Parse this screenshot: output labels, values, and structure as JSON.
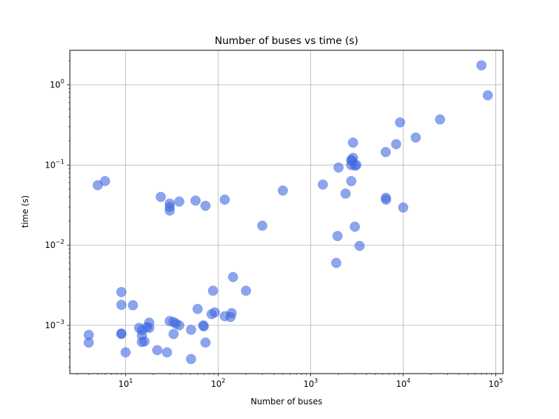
{
  "chart_data": {
    "type": "scatter",
    "title": "Number of buses vs time (s)",
    "xlabel": "Number of buses",
    "ylabel": "time (s)",
    "xscale": "log",
    "yscale": "log",
    "xlim": [
      2.5,
      120000
    ],
    "ylim": [
      0.00025,
      2.7
    ],
    "grid": true,
    "x_ticks": [
      {
        "value": 10,
        "base": "10",
        "exp": "1"
      },
      {
        "value": 100,
        "base": "10",
        "exp": "2"
      },
      {
        "value": 1000,
        "base": "10",
        "exp": "3"
      },
      {
        "value": 10000,
        "base": "10",
        "exp": "4"
      },
      {
        "value": 100000,
        "base": "10",
        "exp": "5"
      }
    ],
    "y_ticks": [
      {
        "value": 0.001,
        "base": "10",
        "exp": "−3"
      },
      {
        "value": 0.01,
        "base": "10",
        "exp": "−2"
      },
      {
        "value": 0.1,
        "base": "10",
        "exp": "−1"
      },
      {
        "value": 1,
        "base": "10",
        "exp": "0"
      }
    ],
    "marker_color": "#4169e1",
    "points": [
      {
        "x": 4,
        "y": 0.00076
      },
      {
        "x": 4,
        "y": 0.00061
      },
      {
        "x": 5,
        "y": 0.056
      },
      {
        "x": 6,
        "y": 0.063
      },
      {
        "x": 9,
        "y": 0.0026
      },
      {
        "x": 9,
        "y": 0.0018
      },
      {
        "x": 9,
        "y": 0.00079
      },
      {
        "x": 9,
        "y": 0.00078
      },
      {
        "x": 10,
        "y": 0.00046
      },
      {
        "x": 12,
        "y": 0.00178
      },
      {
        "x": 14,
        "y": 0.00093
      },
      {
        "x": 15,
        "y": 0.00087
      },
      {
        "x": 15,
        "y": 0.00075
      },
      {
        "x": 15,
        "y": 0.00062
      },
      {
        "x": 16,
        "y": 0.00063
      },
      {
        "x": 17,
        "y": 0.00095
      },
      {
        "x": 18,
        "y": 0.00108
      },
      {
        "x": 18,
        "y": 0.00093
      },
      {
        "x": 22,
        "y": 0.00049
      },
      {
        "x": 24,
        "y": 0.04
      },
      {
        "x": 28,
        "y": 0.00046
      },
      {
        "x": 30,
        "y": 0.033
      },
      {
        "x": 30,
        "y": 0.03
      },
      {
        "x": 30,
        "y": 0.027
      },
      {
        "x": 30,
        "y": 0.00113
      },
      {
        "x": 33,
        "y": 0.0011
      },
      {
        "x": 33,
        "y": 0.00078
      },
      {
        "x": 35,
        "y": 0.00105
      },
      {
        "x": 38,
        "y": 0.035
      },
      {
        "x": 38,
        "y": 0.001
      },
      {
        "x": 51,
        "y": 0.00088
      },
      {
        "x": 51,
        "y": 0.00038
      },
      {
        "x": 57,
        "y": 0.036
      },
      {
        "x": 60,
        "y": 0.0016
      },
      {
        "x": 69,
        "y": 0.001
      },
      {
        "x": 70,
        "y": 0.00097
      },
      {
        "x": 73,
        "y": 0.031
      },
      {
        "x": 73,
        "y": 0.00061
      },
      {
        "x": 85,
        "y": 0.00138
      },
      {
        "x": 88,
        "y": 0.0027
      },
      {
        "x": 92,
        "y": 0.00145
      },
      {
        "x": 118,
        "y": 0.037
      },
      {
        "x": 118,
        "y": 0.0013
      },
      {
        "x": 136,
        "y": 0.00127
      },
      {
        "x": 140,
        "y": 0.00142
      },
      {
        "x": 145,
        "y": 0.004
      },
      {
        "x": 200,
        "y": 0.0027
      },
      {
        "x": 300,
        "y": 0.0175
      },
      {
        "x": 500,
        "y": 0.048
      },
      {
        "x": 1354,
        "y": 0.057
      },
      {
        "x": 1888,
        "y": 0.006
      },
      {
        "x": 1951,
        "y": 0.013
      },
      {
        "x": 2000,
        "y": 0.093
      },
      {
        "x": 2383,
        "y": 0.044
      },
      {
        "x": 2737,
        "y": 0.115
      },
      {
        "x": 2746,
        "y": 0.063
      },
      {
        "x": 2746,
        "y": 0.1
      },
      {
        "x": 2800,
        "y": 0.113
      },
      {
        "x": 2869,
        "y": 0.19
      },
      {
        "x": 2869,
        "y": 0.123
      },
      {
        "x": 3000,
        "y": 0.017
      },
      {
        "x": 3012,
        "y": 0.098
      },
      {
        "x": 3120,
        "y": 0.1
      },
      {
        "x": 3374,
        "y": 0.0098
      },
      {
        "x": 6468,
        "y": 0.145
      },
      {
        "x": 6495,
        "y": 0.039
      },
      {
        "x": 6515,
        "y": 0.037
      },
      {
        "x": 8387,
        "y": 0.182
      },
      {
        "x": 9241,
        "y": 0.34
      },
      {
        "x": 10000,
        "y": 0.0295
      },
      {
        "x": 13659,
        "y": 0.22
      },
      {
        "x": 25000,
        "y": 0.37
      },
      {
        "x": 70000,
        "y": 1.75
      },
      {
        "x": 82000,
        "y": 0.74
      }
    ]
  }
}
